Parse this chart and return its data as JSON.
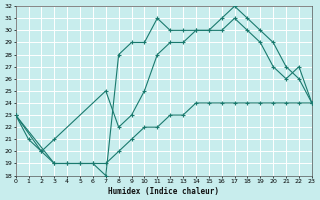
{
  "xlabel": "Humidex (Indice chaleur)",
  "bg_color": "#c8eded",
  "grid_color": "#b0d8d8",
  "line_color": "#1a7a6e",
  "xlim": [
    0,
    23
  ],
  "ylim": [
    18,
    32
  ],
  "xticks": [
    0,
    1,
    2,
    3,
    4,
    5,
    6,
    7,
    8,
    9,
    10,
    11,
    12,
    13,
    14,
    15,
    16,
    17,
    18,
    19,
    20,
    21,
    22,
    23
  ],
  "yticks": [
    18,
    19,
    20,
    21,
    22,
    23,
    24,
    25,
    26,
    27,
    28,
    29,
    30,
    31,
    32
  ],
  "line1_x": [
    0,
    1,
    2,
    3,
    4,
    5,
    6,
    7,
    8,
    9,
    10,
    11,
    12,
    13,
    14,
    15,
    16,
    17,
    18,
    19,
    20,
    21,
    22,
    23
  ],
  "line1_y": [
    23,
    21,
    20,
    19,
    19,
    19,
    19,
    18,
    28,
    29,
    29,
    31,
    30,
    30,
    30,
    30,
    31,
    32,
    31,
    30,
    29,
    27,
    26,
    24
  ],
  "line2_x": [
    0,
    2,
    3,
    7,
    8,
    9,
    10,
    11,
    12,
    13,
    14,
    15,
    16,
    17,
    18,
    19,
    20,
    21,
    22,
    23
  ],
  "line2_y": [
    23,
    20,
    21,
    25,
    22,
    23,
    25,
    28,
    29,
    29,
    30,
    30,
    30,
    31,
    30,
    29,
    27,
    26,
    27,
    24
  ],
  "line3_x": [
    0,
    3,
    4,
    5,
    6,
    7,
    8,
    9,
    10,
    11,
    12,
    13,
    14,
    15,
    16,
    17,
    18,
    19,
    20,
    21,
    22,
    23
  ],
  "line3_y": [
    23,
    19,
    19,
    19,
    19,
    19,
    20,
    21,
    22,
    22,
    23,
    23,
    24,
    24,
    24,
    24,
    24,
    24,
    24,
    24,
    24,
    24
  ]
}
